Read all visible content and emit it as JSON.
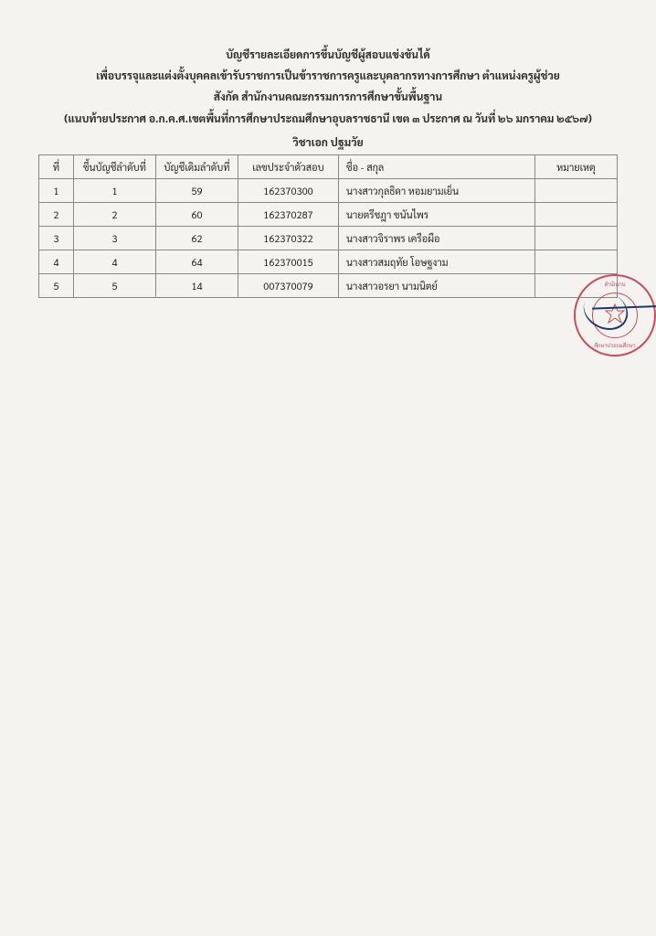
{
  "header": {
    "line1": "บัญชีรายละเอียดการขึ้นบัญชีผู้สอบแข่งขันได้",
    "line2": "เพื่อบรรจุและแต่งตั้งบุคคลเข้ารับราชการเป็นข้าราชการครูและบุคลากรทางการศึกษา ตำแหน่งครูผู้ช่วย",
    "line3": "สังกัด สำนักงานคณะกรรมการการศึกษาขั้นพื้นฐาน",
    "line4": "(แนบท้ายประกาศ อ.ก.ค.ศ.เขตพื้นที่การศึกษาประถมศึกษาอุบลราชธานี เขต ๓ ประกาศ ณ วันที่  ๒๖  มกราคม ๒๕๖๗)",
    "subject": "วิชาเอก ปฐมวัย"
  },
  "table": {
    "columns": {
      "no": "ที่",
      "rank": "ขึ้นบัญชีลำดับที่",
      "orig": "บัญชีเดิมลำดับที่",
      "exam": "เลขประจำตัวสอบ",
      "name": "ชื่อ - สกุล",
      "note": "หมายเหตุ"
    },
    "rows": [
      {
        "no": "1",
        "rank": "1",
        "orig": "59",
        "exam": "162370300",
        "name": "นางสาวกุลธิดา  หอมยามเย็น",
        "note": ""
      },
      {
        "no": "2",
        "rank": "2",
        "orig": "60",
        "exam": "162370287",
        "name": "นายตรีชฎา  ขนันไพร",
        "note": ""
      },
      {
        "no": "3",
        "rank": "3",
        "orig": "62",
        "exam": "162370322",
        "name": "นางสาวจิราพร  เครือผือ",
        "note": ""
      },
      {
        "no": "4",
        "rank": "4",
        "orig": "64",
        "exam": "162370015",
        "name": "นางสาวสมฤทัย  โอษฐงาม",
        "note": ""
      },
      {
        "no": "5",
        "rank": "5",
        "orig": "14",
        "exam": "007370079",
        "name": "นางสาวอรยา  นามนิตย์",
        "note": ""
      }
    ]
  }
}
